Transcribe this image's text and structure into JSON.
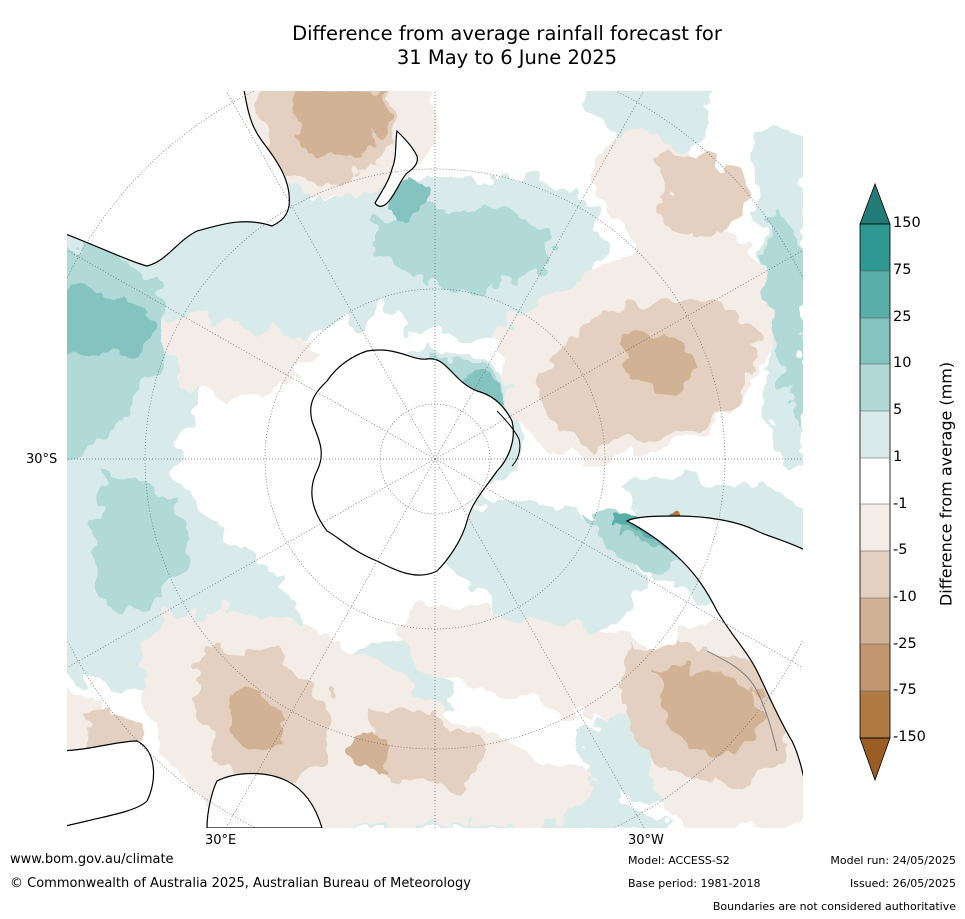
{
  "title": {
    "line1": "Difference from average rainfall forecast for",
    "line2": "31 May to 6 June 2025"
  },
  "map": {
    "projection": "south-polar-stereographic",
    "lat_label": "30°S",
    "lon_labels": [
      "30°E",
      "30°W"
    ],
    "land_color": "#ffffff",
    "coast_color": "#000000",
    "border_color": "#888888"
  },
  "colorbar": {
    "label": "Difference from average (mm)",
    "ticks": [
      "150",
      "75",
      "25",
      "10",
      "5",
      "1",
      "-1",
      "-5",
      "-10",
      "-25",
      "-75",
      "-150"
    ],
    "colors": {
      "over": "#237b78",
      "150_to_75": "#2f9893",
      "75_to_25": "#5aaeaa",
      "25_to_10": "#85c3c1",
      "10_to_5": "#b0d9d7",
      "5_to_1": "#d8ebea",
      "1_to_-1": "#ffffff",
      "-1_to_-5": "#f3ece7",
      "-5_to_-10": "#e3d0c0",
      "-10_to_-25": "#d2b295",
      "-25_to_-75": "#c29670",
      "-75_to_-150": "#b07a44",
      "under": "#9a5e24"
    }
  },
  "footer": {
    "url": "www.bom.gov.au/climate",
    "copyright": "© Commonwealth of Australia 2025, Australian Bureau of Meteorology",
    "model": "Model: ACCESS-S2",
    "base_period": "Base period: 1981-2018",
    "model_run": "Model run: 24/05/2025",
    "issued": "Issued: 26/05/2025",
    "disclaimer": "Boundaries are not considered authoritative"
  }
}
